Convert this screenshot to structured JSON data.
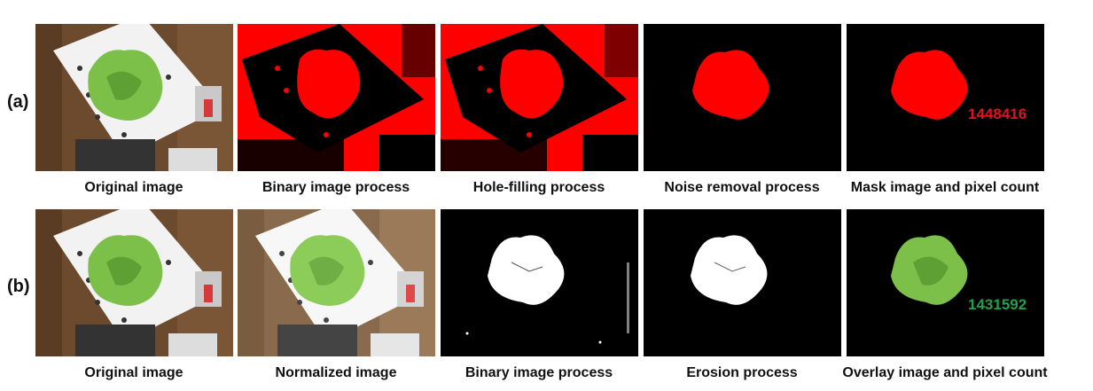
{
  "rows": [
    {
      "label": "(a)",
      "panels": [
        {
          "caption": "Original image"
        },
        {
          "caption": "Binary image process"
        },
        {
          "caption": "Hole-filling process"
        },
        {
          "caption": "Noise removal process"
        },
        {
          "caption": "Mask image and pixel count",
          "pixel_count": "1448416"
        }
      ]
    },
    {
      "label": "(b)",
      "panels": [
        {
          "caption": "Original image"
        },
        {
          "caption": "Normalized image"
        },
        {
          "caption": "Binary image process"
        },
        {
          "caption": "Erosion process"
        },
        {
          "caption": "Overlay image and pixel count",
          "pixel_count": "1431592"
        }
      ]
    }
  ],
  "colors": {
    "mask_red": "#ff0000",
    "count_red": "#e0141e",
    "count_green": "#22a04a",
    "lettuce_green": "#7cc04a",
    "table_brown": "#6b4a2e",
    "board_white": "#f2f2f2"
  }
}
